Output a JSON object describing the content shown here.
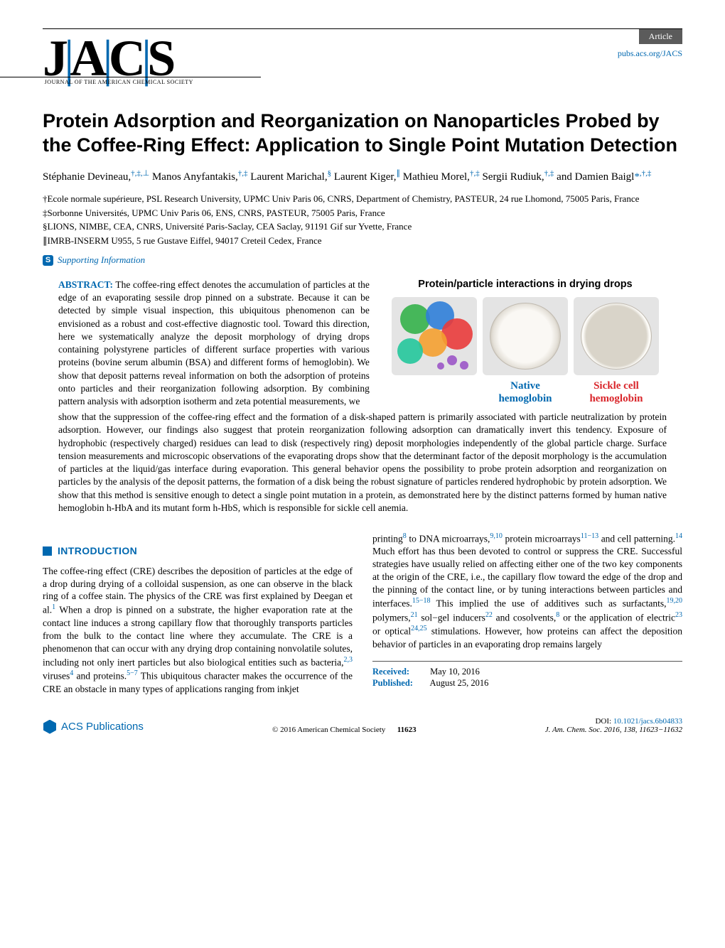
{
  "header": {
    "logo_j": "J",
    "logo_a": "A",
    "logo_c": "C",
    "logo_s": "S",
    "journal_name": "JOURNAL OF THE AMERICAN CHEMICAL SOCIETY",
    "article_badge": "Article",
    "pubs_link": "pubs.acs.org/JACS"
  },
  "title": "Protein Adsorption and Reorganization on Nanoparticles Probed by the Coffee-Ring Effect: Application to Single Point Mutation Detection",
  "authors_html": "Stéphanie Devineau,<sup>†,‡,⊥</sup> Manos Anyfantakis,<sup>†,‡</sup> Laurent Marichal,<sup>§</sup> Laurent Kiger,<sup>∥</sup> Mathieu Morel,<sup>†,‡</sup> Sergii Rudiuk,<sup>†,‡</sup> and Damien Baigl<span class='asterisk'>*</span><sup>,†,‡</sup>",
  "affiliations": [
    "†Ecole normale supérieure, PSL Research University, UPMC Univ Paris 06, CNRS, Department of Chemistry, PASTEUR, 24 rue Lhomond, 75005 Paris, France",
    "‡Sorbonne Universités, UPMC Univ Paris 06, ENS, CNRS, PASTEUR, 75005 Paris, France",
    "§LIONS, NIMBE, CEA, CNRS, Université Paris-Saclay, CEA Saclay, 91191 Gif sur Yvette, France",
    "∥IMRB-INSERM U955, 5 rue Gustave Eiffel, 94017 Creteil Cedex, France"
  ],
  "supporting_info": "Supporting Information",
  "abstract": {
    "label": "ABSTRACT:",
    "left_text": "The coffee-ring effect denotes the accumulation of particles at the edge of an evaporating sessile drop pinned on a substrate. Because it can be detected by simple visual inspection, this ubiquitous phenomenon can be envisioned as a robust and cost-effective diagnostic tool. Toward this direction, here we systematically analyze the deposit morphology of drying drops containing polystyrene particles of different surface properties with various proteins (bovine serum albumin (BSA) and different forms of hemoglobin). We show that deposit patterns reveal information on both the adsorption of proteins onto particles and their reorganization following adsorption. By combining pattern analysis with adsorption isotherm and zeta potential measurements, we",
    "continue_text": "show that the suppression of the coffee-ring effect and the formation of a disk-shaped pattern is primarily associated with particle neutralization by protein adsorption. However, our findings also suggest that protein reorganization following adsorption can dramatically invert this tendency. Exposure of hydrophobic (respectively charged) residues can lead to disk (respectively ring) deposit morphologies independently of the global particle charge. Surface tension measurements and microscopic observations of the evaporating drops show that the determinant factor of the deposit morphology is the accumulation of particles at the liquid/gas interface during evaporation. This general behavior opens the possibility to probe protein adsorption and reorganization on particles by the analysis of the deposit patterns, the formation of a disk being the robust signature of particles rendered hydrophobic by protein adsorption. We show that this method is sensitive enough to detect a single point mutation in a protein, as demonstrated here by the distinct patterns formed by human native hemoglobin h-HbA and its mutant form h-HbS, which is responsible for sickle cell anemia."
  },
  "figure": {
    "title": "Protein/particle interactions in drying drops",
    "protein_colors": [
      "#34b14a",
      "#2f7ed8",
      "#e93b3b",
      "#f4a030",
      "#23c79b"
    ],
    "native_label": "Native hemoglobin",
    "sickle_label": "Sickle cell hemoglobin",
    "colors": {
      "native": "#0068b0",
      "sickle": "#d9252a"
    }
  },
  "intro": {
    "heading": "INTRODUCTION",
    "col1": "The coffee-ring effect (CRE) describes the deposition of particles at the edge of a drop during drying of a colloidal suspension, as one can observe in the black ring of a coffee stain. The physics of the CRE was first explained by Deegan et al.<span class='ref'>1</span> When a drop is pinned on a substrate, the higher evaporation rate at the contact line induces a strong capillary flow that thoroughly transports particles from the bulk to the contact line where they accumulate. The CRE is a phenomenon that can occur with any drying drop containing nonvolatile solutes, including not only inert particles but also biological entities such as bacteria,<span class='ref'>2,3</span> viruses<span class='ref'>4</span> and proteins.<span class='ref'>5−7</span> This ubiquitous character makes the occurrence of the CRE an obstacle in many types of applications ranging from inkjet",
    "col2": "printing<span class='ref'>8</span> to DNA microarrays,<span class='ref'>9,10</span> protein microarrays<span class='ref'>11−13</span> and cell patterning.<span class='ref'>14</span> Much effort has thus been devoted to control or suppress the CRE. Successful strategies have usually relied on affecting either one of the two key components at the origin of the CRE, i.e., the capillary flow toward the edge of the drop and the pinning of the contact line, or by tuning interactions between particles and interfaces.<span class='ref'>15−18</span> This implied the use of additives such as surfactants,<span class='ref'>19,20</span> polymers,<span class='ref'>21</span> sol−gel inducers<span class='ref'>22</span> and cosolvents,<span class='ref'>8</span> or the application of electric<span class='ref'>23</span> or optical<span class='ref'>24,25</span> stimulations. However, how proteins can affect the deposition behavior of particles in an evaporating drop remains largely"
  },
  "received": {
    "received_label": "Received:",
    "received_date": "May 10, 2016",
    "published_label": "Published:",
    "published_date": "August 25, 2016"
  },
  "footer": {
    "acs_publications": "ACS Publications",
    "copyright": "© 2016 American Chemical Society",
    "page": "11623",
    "doi_label": "DOI: ",
    "doi": "10.1021/jacs.6b04833",
    "citation": "J. Am. Chem. Soc. 2016, 138, 11623−11632"
  },
  "colors": {
    "accent": "#0068b0",
    "badge_bg": "#5b5b5b",
    "text": "#000000"
  }
}
